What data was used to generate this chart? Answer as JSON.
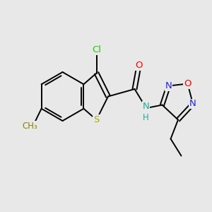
{
  "background_color": "#e8e8e8",
  "bond_color": "#000000",
  "bond_lw": 1.4,
  "atoms": {
    "Cl": {
      "color": "#22cc00"
    },
    "O": {
      "color": "#ff0000"
    },
    "N": {
      "color": "#2222ee"
    },
    "S": {
      "color": "#aaaa00"
    },
    "NH_N": {
      "color": "#22aa99"
    },
    "C": {
      "color": "#000000"
    }
  },
  "figsize": [
    3.0,
    3.0
  ],
  "dpi": 100
}
